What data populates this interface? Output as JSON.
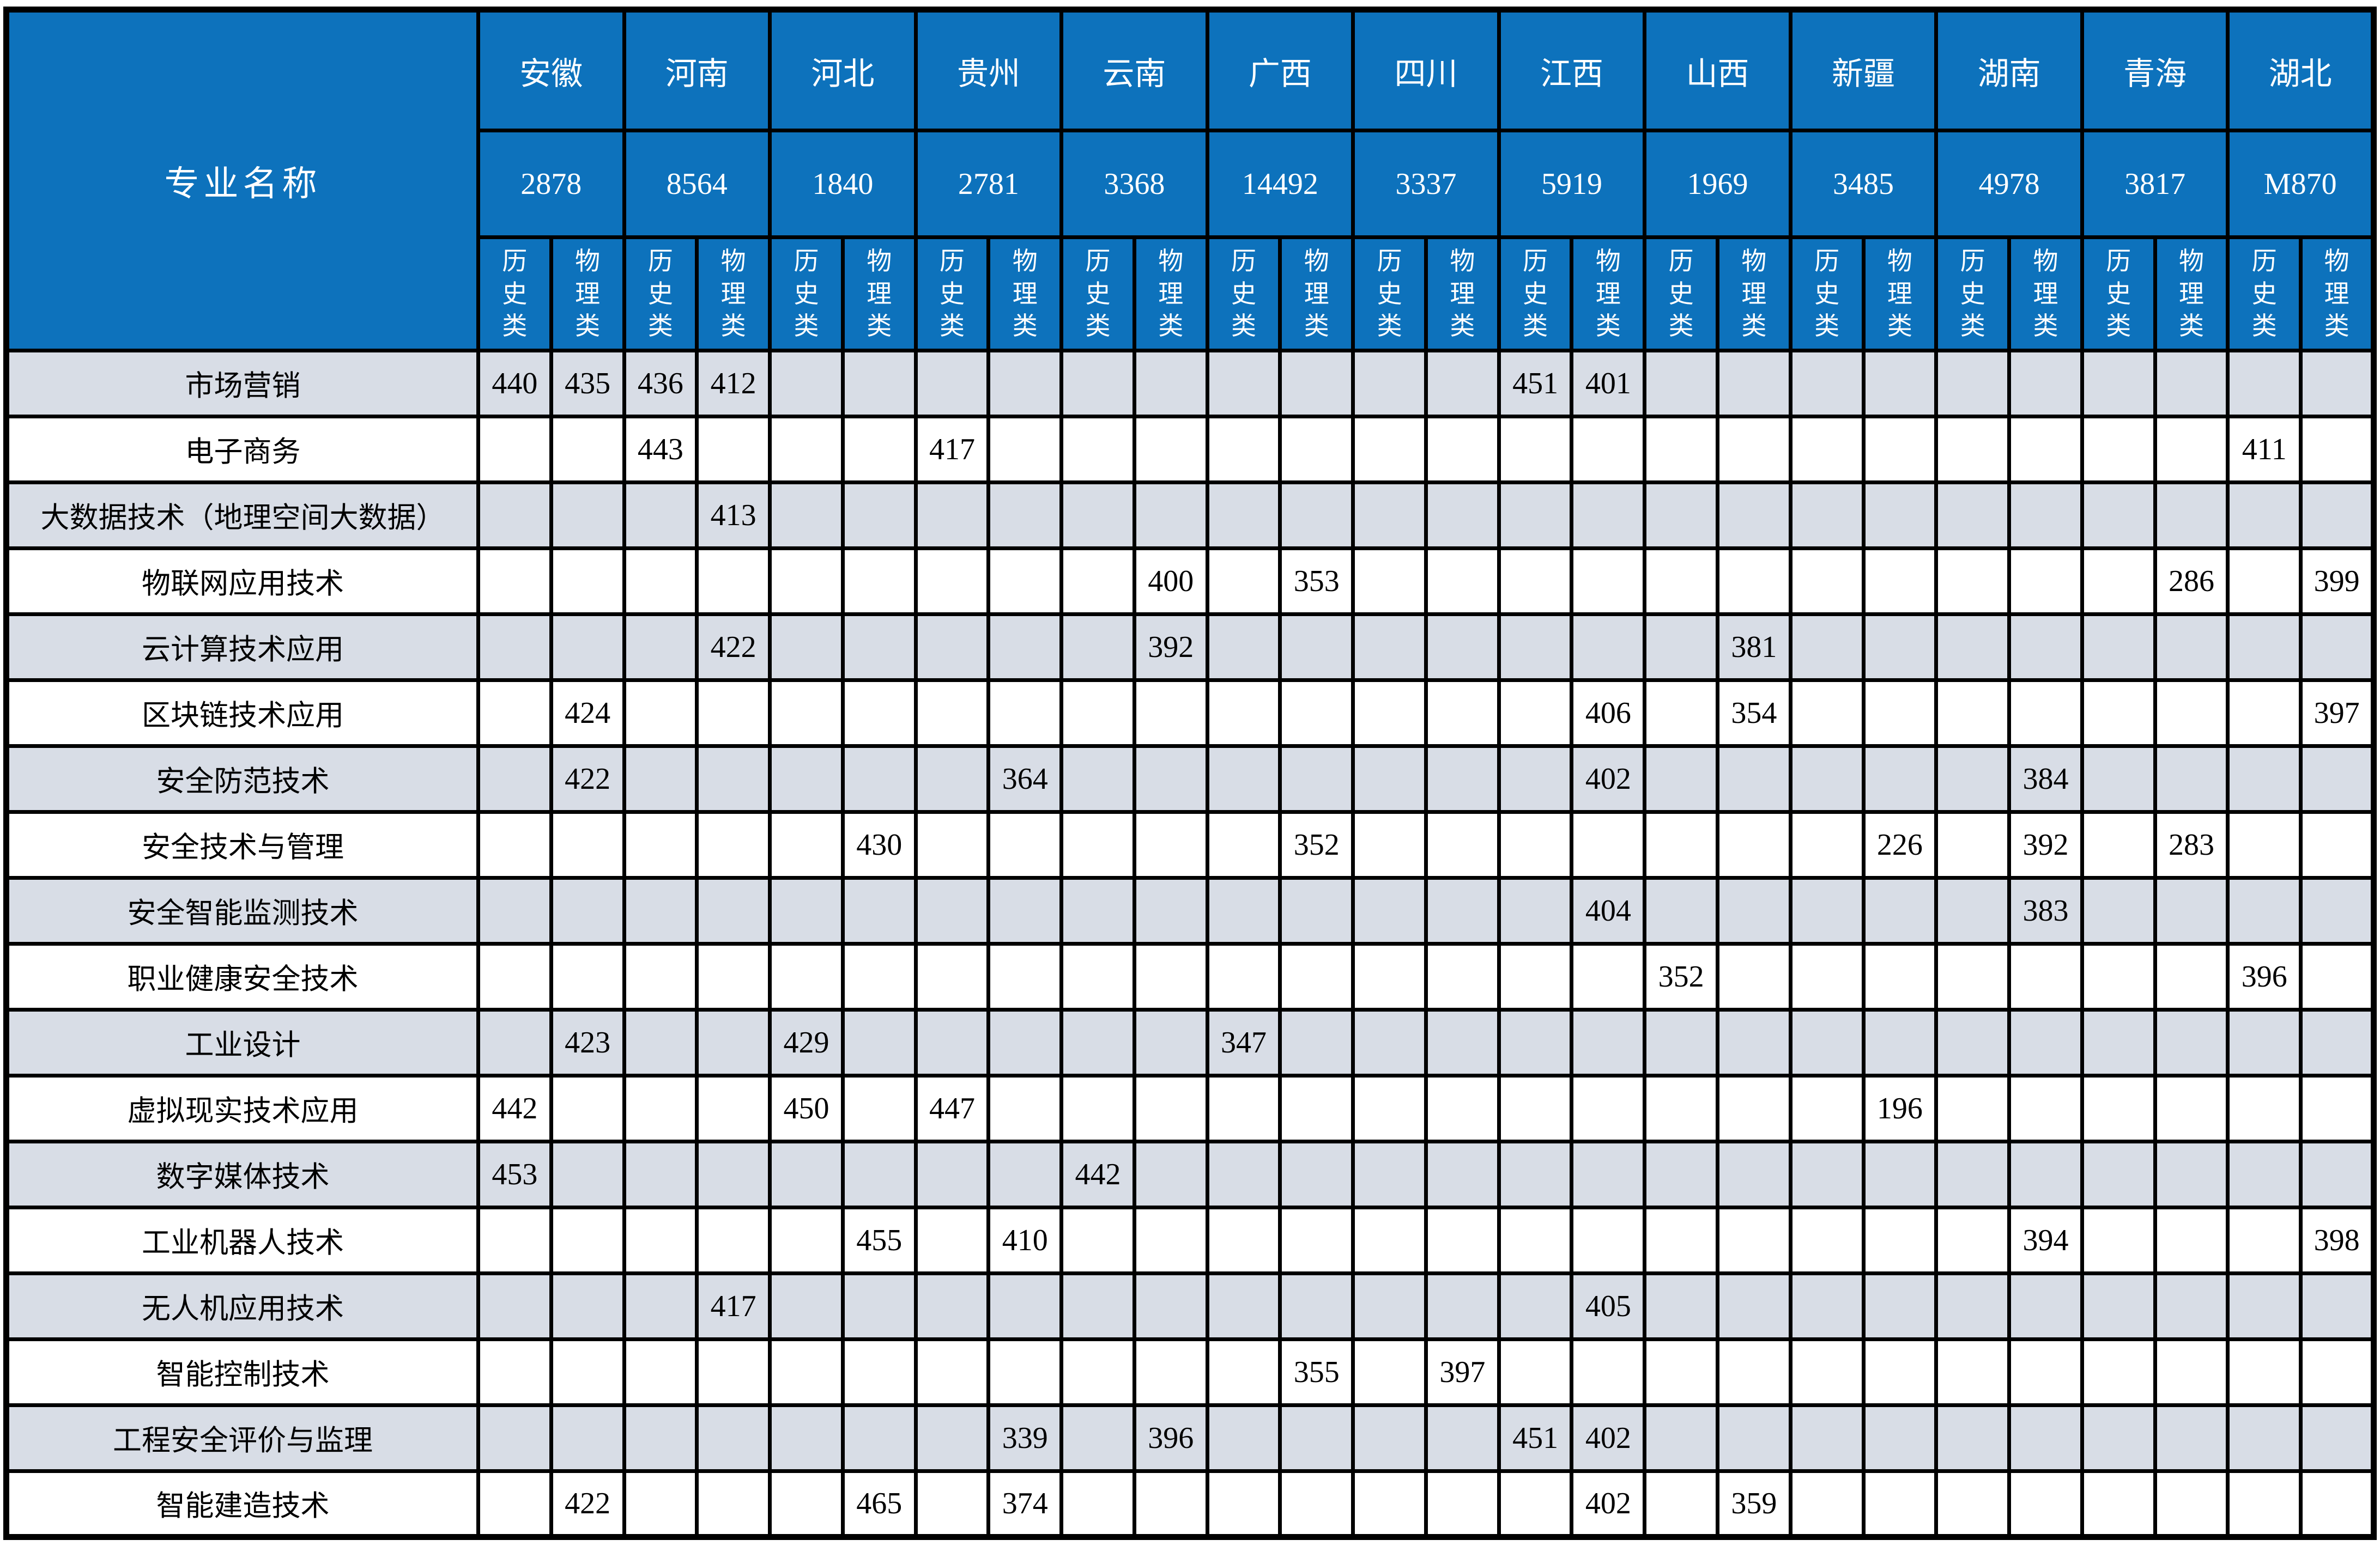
{
  "colors": {
    "header_bg": "#0d72bc",
    "header_text": "#ffffff",
    "row_shaded": "#d8dde6",
    "row_plain": "#ffffff",
    "border": "#000000",
    "text": "#000000"
  },
  "chart_data": {
    "type": "table",
    "major_column_header": "专业名称",
    "class_labels": [
      "历史类",
      "物理类"
    ],
    "provinces": [
      {
        "name": "安徽",
        "code": "2878"
      },
      {
        "name": "河南",
        "code": "8564"
      },
      {
        "name": "河北",
        "code": "1840"
      },
      {
        "name": "贵州",
        "code": "2781"
      },
      {
        "name": "云南",
        "code": "3368"
      },
      {
        "name": "广西",
        "code": "14492"
      },
      {
        "name": "四川",
        "code": "3337"
      },
      {
        "name": "江西",
        "code": "5919"
      },
      {
        "name": "山西",
        "code": "1969"
      },
      {
        "name": "新疆",
        "code": "3485"
      },
      {
        "name": "湖南",
        "code": "4978"
      },
      {
        "name": "青海",
        "code": "3817"
      },
      {
        "name": "湖北",
        "code": "M870"
      }
    ],
    "rows": [
      {
        "major": "市场营销",
        "scores": [
          "440",
          "435",
          "436",
          "412",
          "",
          "",
          "",
          "",
          "",
          "",
          "",
          "",
          "",
          "",
          "451",
          "401",
          "",
          "",
          "",
          "",
          "",
          "",
          "",
          "",
          "",
          ""
        ]
      },
      {
        "major": "电子商务",
        "scores": [
          "",
          "",
          "443",
          "",
          "",
          "",
          "417",
          "",
          "",
          "",
          "",
          "",
          "",
          "",
          "",
          "",
          "",
          "",
          "",
          "",
          "",
          "",
          "",
          "",
          "411",
          ""
        ]
      },
      {
        "major": "大数据技术（地理空间大数据）",
        "scores": [
          "",
          "",
          "",
          "413",
          "",
          "",
          "",
          "",
          "",
          "",
          "",
          "",
          "",
          "",
          "",
          "",
          "",
          "",
          "",
          "",
          "",
          "",
          "",
          "",
          "",
          ""
        ]
      },
      {
        "major": "物联网应用技术",
        "scores": [
          "",
          "",
          "",
          "",
          "",
          "",
          "",
          "",
          "",
          "400",
          "",
          "353",
          "",
          "",
          "",
          "",
          "",
          "",
          "",
          "",
          "",
          "",
          "",
          "286",
          "",
          "399"
        ]
      },
      {
        "major": "云计算技术应用",
        "scores": [
          "",
          "",
          "",
          "422",
          "",
          "",
          "",
          "",
          "",
          "392",
          "",
          "",
          "",
          "",
          "",
          "",
          "",
          "381",
          "",
          "",
          "",
          "",
          "",
          "",
          "",
          ""
        ]
      },
      {
        "major": "区块链技术应用",
        "scores": [
          "",
          "424",
          "",
          "",
          "",
          "",
          "",
          "",
          "",
          "",
          "",
          "",
          "",
          "",
          "",
          "406",
          "",
          "354",
          "",
          "",
          "",
          "",
          "",
          "",
          "",
          "397"
        ]
      },
      {
        "major": "安全防范技术",
        "scores": [
          "",
          "422",
          "",
          "",
          "",
          "",
          "",
          "364",
          "",
          "",
          "",
          "",
          "",
          "",
          "",
          "402",
          "",
          "",
          "",
          "",
          "",
          "384",
          "",
          "",
          "",
          ""
        ]
      },
      {
        "major": "安全技术与管理",
        "scores": [
          "",
          "",
          "",
          "",
          "",
          "430",
          "",
          "",
          "",
          "",
          "",
          "352",
          "",
          "",
          "",
          "",
          "",
          "",
          "",
          "226",
          "",
          "392",
          "",
          "283",
          "",
          ""
        ]
      },
      {
        "major": "安全智能监测技术",
        "scores": [
          "",
          "",
          "",
          "",
          "",
          "",
          "",
          "",
          "",
          "",
          "",
          "",
          "",
          "",
          "",
          "404",
          "",
          "",
          "",
          "",
          "",
          "383",
          "",
          "",
          "",
          ""
        ]
      },
      {
        "major": "职业健康安全技术",
        "scores": [
          "",
          "",
          "",
          "",
          "",
          "",
          "",
          "",
          "",
          "",
          "",
          "",
          "",
          "",
          "",
          "",
          "352",
          "",
          "",
          "",
          "",
          "",
          "",
          "",
          "396",
          ""
        ]
      },
      {
        "major": "工业设计",
        "scores": [
          "",
          "423",
          "",
          "",
          "429",
          "",
          "",
          "",
          "",
          "",
          "347",
          "",
          "",
          "",
          "",
          "",
          "",
          "",
          "",
          "",
          "",
          "",
          "",
          "",
          "",
          ""
        ]
      },
      {
        "major": "虚拟现实技术应用",
        "scores": [
          "442",
          "",
          "",
          "",
          "450",
          "",
          "447",
          "",
          "",
          "",
          "",
          "",
          "",
          "",
          "",
          "",
          "",
          "",
          "",
          "196",
          "",
          "",
          "",
          "",
          "",
          ""
        ]
      },
      {
        "major": "数字媒体技术",
        "scores": [
          "453",
          "",
          "",
          "",
          "",
          "",
          "",
          "",
          "442",
          "",
          "",
          "",
          "",
          "",
          "",
          "",
          "",
          "",
          "",
          "",
          "",
          "",
          "",
          "",
          "",
          ""
        ]
      },
      {
        "major": "工业机器人技术",
        "scores": [
          "",
          "",
          "",
          "",
          "",
          "455",
          "",
          "410",
          "",
          "",
          "",
          "",
          "",
          "",
          "",
          "",
          "",
          "",
          "",
          "",
          "",
          "394",
          "",
          "",
          "",
          "398"
        ]
      },
      {
        "major": "无人机应用技术",
        "scores": [
          "",
          "",
          "",
          "417",
          "",
          "",
          "",
          "",
          "",
          "",
          "",
          "",
          "",
          "",
          "",
          "405",
          "",
          "",
          "",
          "",
          "",
          "",
          "",
          "",
          "",
          ""
        ]
      },
      {
        "major": "智能控制技术",
        "scores": [
          "",
          "",
          "",
          "",
          "",
          "",
          "",
          "",
          "",
          "",
          "",
          "355",
          "",
          "397",
          "",
          "",
          "",
          "",
          "",
          "",
          "",
          "",
          "",
          "",
          "",
          ""
        ]
      },
      {
        "major": "工程安全评价与监理",
        "scores": [
          "",
          "",
          "",
          "",
          "",
          "",
          "",
          "339",
          "",
          "396",
          "",
          "",
          "",
          "",
          "451",
          "402",
          "",
          "",
          "",
          "",
          "",
          "",
          "",
          "",
          "",
          ""
        ]
      },
      {
        "major": "智能建造技术",
        "scores": [
          "",
          "422",
          "",
          "",
          "",
          "465",
          "",
          "374",
          "",
          "",
          "",
          "",
          "",
          "",
          "",
          "402",
          "",
          "359",
          "",
          "",
          "",
          "",
          "",
          "",
          "",
          ""
        ]
      }
    ]
  }
}
